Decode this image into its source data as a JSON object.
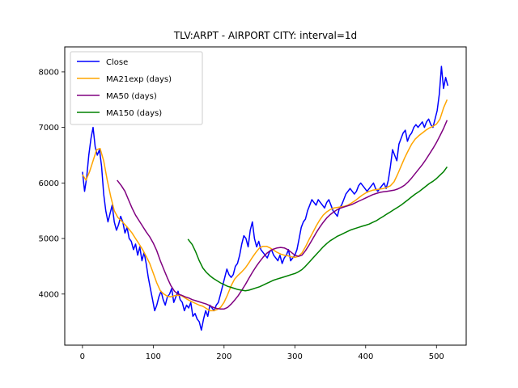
{
  "chart_data": {
    "type": "line",
    "title": "TLV:ARPT - AIRPORT CITY: interval=1d",
    "xlabel": "",
    "ylabel": "",
    "xlim": [
      -25,
      542
    ],
    "ylim": [
      3080,
      8450
    ],
    "x_ticks": [
      0,
      100,
      200,
      300,
      400,
      500
    ],
    "y_ticks": [
      4000,
      5000,
      6000,
      7000,
      8000
    ],
    "grid": false,
    "legend_position": "upper left",
    "series": [
      {
        "name": "Close",
        "color": "#0000ff",
        "x": [
          0,
          3,
          6,
          9,
          12,
          15,
          18,
          21,
          24,
          27,
          30,
          33,
          36,
          39,
          42,
          45,
          48,
          51,
          54,
          57,
          60,
          63,
          66,
          69,
          72,
          75,
          78,
          81,
          84,
          87,
          90,
          93,
          96,
          99,
          102,
          105,
          108,
          111,
          114,
          117,
          120,
          123,
          126,
          129,
          132,
          135,
          138,
          141,
          144,
          147,
          150,
          153,
          156,
          159,
          162,
          165,
          168,
          171,
          174,
          177,
          180,
          183,
          186,
          189,
          192,
          195,
          198,
          201,
          204,
          207,
          210,
          213,
          216,
          219,
          222,
          225,
          228,
          231,
          234,
          237,
          240,
          243,
          246,
          249,
          252,
          255,
          258,
          261,
          264,
          267,
          270,
          273,
          276,
          279,
          282,
          285,
          288,
          291,
          294,
          297,
          300,
          303,
          306,
          309,
          312,
          315,
          318,
          321,
          324,
          327,
          330,
          333,
          336,
          339,
          342,
          345,
          348,
          351,
          354,
          357,
          360,
          363,
          366,
          369,
          372,
          375,
          378,
          381,
          384,
          387,
          390,
          393,
          396,
          399,
          402,
          405,
          408,
          411,
          414,
          417,
          420,
          423,
          426,
          429,
          432,
          435,
          438,
          441,
          444,
          447,
          450,
          453,
          456,
          459,
          462,
          465,
          468,
          471,
          474,
          477,
          480,
          483,
          486,
          489,
          492,
          495,
          498,
          501,
          504,
          507,
          510,
          513,
          516
        ],
        "values": [
          6200,
          5850,
          6100,
          6500,
          6800,
          7000,
          6650,
          6500,
          6600,
          6300,
          5800,
          5500,
          5300,
          5450,
          5600,
          5300,
          5150,
          5250,
          5400,
          5300,
          5100,
          5200,
          5000,
          4950,
          4800,
          4900,
          4700,
          4850,
          4600,
          4750,
          4550,
          4300,
          4100,
          3900,
          3700,
          3800,
          3950,
          4050,
          3900,
          3800,
          3950,
          4000,
          4100,
          3850,
          3950,
          4050,
          3900,
          3850,
          3700,
          3800,
          3750,
          3850,
          3600,
          3650,
          3550,
          3500,
          3350,
          3550,
          3700,
          3600,
          3800,
          3750,
          3700,
          3800,
          3850,
          4000,
          4150,
          4300,
          4450,
          4350,
          4300,
          4350,
          4500,
          4550,
          4700,
          4900,
          5050,
          5000,
          4850,
          5150,
          5300,
          5000,
          4850,
          4950,
          4800,
          4750,
          4700,
          4650,
          4750,
          4800,
          4700,
          4650,
          4600,
          4700,
          4550,
          4650,
          4700,
          4800,
          4600,
          4650,
          4700,
          4800,
          5000,
          5200,
          5300,
          5350,
          5500,
          5600,
          5700,
          5650,
          5600,
          5700,
          5650,
          5600,
          5550,
          5650,
          5700,
          5600,
          5500,
          5450,
          5400,
          5550,
          5600,
          5700,
          5800,
          5850,
          5900,
          5850,
          5800,
          5850,
          5950,
          6000,
          5950,
          5900,
          5850,
          5900,
          5950,
          6000,
          5900,
          5850,
          5900,
          5950,
          6000,
          5900,
          6050,
          6300,
          6600,
          6500,
          6400,
          6700,
          6800,
          6900,
          6950,
          6750,
          6850,
          6900,
          7000,
          7050,
          7000,
          7050,
          7100,
          7000,
          7100,
          7150,
          7050,
          7000,
          7150,
          7300,
          7600,
          8100,
          7700,
          7900,
          7750
        ]
      },
      {
        "name": "MA21exp (days)",
        "color": "#ffa500",
        "x": [
          0,
          5,
          10,
          15,
          20,
          25,
          30,
          35,
          40,
          45,
          50,
          55,
          60,
          65,
          70,
          75,
          80,
          85,
          90,
          95,
          100,
          105,
          110,
          115,
          120,
          125,
          130,
          135,
          140,
          145,
          150,
          155,
          160,
          165,
          170,
          175,
          180,
          185,
          190,
          195,
          200,
          205,
          210,
          215,
          220,
          225,
          230,
          235,
          240,
          245,
          250,
          255,
          260,
          265,
          270,
          275,
          280,
          285,
          290,
          295,
          300,
          305,
          310,
          315,
          320,
          325,
          330,
          335,
          340,
          345,
          350,
          355,
          360,
          365,
          370,
          375,
          380,
          385,
          390,
          395,
          400,
          405,
          410,
          415,
          420,
          425,
          430,
          435,
          440,
          445,
          450,
          455,
          460,
          465,
          470,
          475,
          480,
          485,
          490,
          495,
          500,
          505,
          510,
          515
        ],
        "values": [
          6150,
          6050,
          6200,
          6400,
          6600,
          6620,
          6400,
          6050,
          5750,
          5500,
          5380,
          5320,
          5250,
          5180,
          5100,
          5000,
          4900,
          4800,
          4680,
          4550,
          4380,
          4200,
          4060,
          4000,
          3960,
          3950,
          3970,
          3980,
          3970,
          3930,
          3890,
          3860,
          3830,
          3800,
          3780,
          3740,
          3700,
          3700,
          3720,
          3760,
          3850,
          3990,
          4150,
          4270,
          4340,
          4400,
          4470,
          4560,
          4660,
          4750,
          4830,
          4860,
          4860,
          4830,
          4790,
          4750,
          4720,
          4700,
          4690,
          4670,
          4660,
          4680,
          4740,
          4850,
          4980,
          5100,
          5220,
          5330,
          5420,
          5480,
          5520,
          5550,
          5560,
          5570,
          5580,
          5600,
          5640,
          5680,
          5730,
          5780,
          5820,
          5850,
          5870,
          5880,
          5890,
          5900,
          5920,
          5950,
          6020,
          6150,
          6300,
          6450,
          6580,
          6700,
          6790,
          6850,
          6900,
          6950,
          6990,
          7020,
          7060,
          7150,
          7350,
          7500
        ]
      },
      {
        "name": "MA50 (days)",
        "color": "#800080",
        "x": [
          49,
          55,
          60,
          65,
          70,
          75,
          80,
          85,
          90,
          95,
          100,
          105,
          110,
          115,
          120,
          125,
          130,
          135,
          140,
          145,
          150,
          155,
          160,
          165,
          170,
          175,
          180,
          185,
          190,
          195,
          200,
          205,
          210,
          215,
          220,
          225,
          230,
          235,
          240,
          245,
          250,
          255,
          260,
          265,
          270,
          275,
          280,
          285,
          290,
          295,
          300,
          305,
          310,
          315,
          320,
          325,
          330,
          335,
          340,
          345,
          350,
          355,
          360,
          365,
          370,
          375,
          380,
          385,
          390,
          395,
          400,
          405,
          410,
          415,
          420,
          425,
          430,
          435,
          440,
          445,
          450,
          455,
          460,
          465,
          470,
          475,
          480,
          485,
          490,
          495,
          500,
          505,
          510,
          515
        ],
        "values": [
          6050,
          5950,
          5850,
          5700,
          5550,
          5420,
          5320,
          5220,
          5120,
          5030,
          4920,
          4780,
          4600,
          4440,
          4290,
          4150,
          4050,
          4000,
          3980,
          3950,
          3930,
          3900,
          3880,
          3860,
          3840,
          3820,
          3790,
          3760,
          3740,
          3730,
          3730,
          3760,
          3820,
          3890,
          3970,
          4070,
          4170,
          4280,
          4390,
          4490,
          4580,
          4660,
          4730,
          4780,
          4810,
          4830,
          4840,
          4830,
          4800,
          4750,
          4700,
          4680,
          4700,
          4780,
          4880,
          4990,
          5100,
          5200,
          5290,
          5370,
          5430,
          5480,
          5520,
          5550,
          5570,
          5590,
          5610,
          5640,
          5670,
          5700,
          5730,
          5760,
          5790,
          5810,
          5830,
          5840,
          5850,
          5860,
          5870,
          5890,
          5920,
          5960,
          6020,
          6090,
          6170,
          6250,
          6330,
          6420,
          6520,
          6620,
          6730,
          6850,
          6980,
          7130
        ]
      },
      {
        "name": "MA150 (days)",
        "color": "#008000",
        "x": [
          149,
          155,
          160,
          165,
          170,
          175,
          180,
          185,
          190,
          195,
          200,
          205,
          210,
          215,
          220,
          225,
          230,
          235,
          240,
          245,
          250,
          255,
          260,
          265,
          270,
          275,
          280,
          285,
          290,
          295,
          300,
          305,
          310,
          315,
          320,
          325,
          330,
          335,
          340,
          345,
          350,
          355,
          360,
          365,
          370,
          375,
          380,
          385,
          390,
          395,
          400,
          405,
          410,
          415,
          420,
          425,
          430,
          435,
          440,
          445,
          450,
          455,
          460,
          465,
          470,
          475,
          480,
          485,
          490,
          495,
          500,
          505,
          510,
          515
        ],
        "values": [
          4990,
          4890,
          4760,
          4600,
          4470,
          4390,
          4330,
          4280,
          4240,
          4200,
          4170,
          4140,
          4120,
          4100,
          4080,
          4070,
          4060,
          4070,
          4090,
          4110,
          4130,
          4160,
          4190,
          4220,
          4250,
          4270,
          4290,
          4310,
          4330,
          4350,
          4370,
          4400,
          4440,
          4500,
          4570,
          4640,
          4710,
          4780,
          4850,
          4910,
          4960,
          5000,
          5040,
          5070,
          5100,
          5130,
          5160,
          5180,
          5200,
          5220,
          5240,
          5260,
          5290,
          5320,
          5360,
          5400,
          5440,
          5480,
          5520,
          5560,
          5600,
          5650,
          5700,
          5750,
          5800,
          5840,
          5890,
          5940,
          5990,
          6030,
          6080,
          6140,
          6200,
          6290
        ]
      }
    ]
  }
}
